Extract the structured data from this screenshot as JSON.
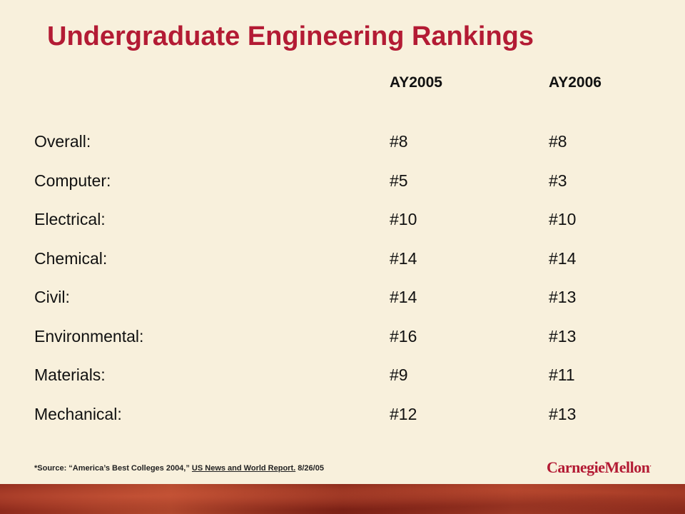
{
  "title": "Undergraduate Engineering Rankings",
  "columns": [
    "AY2005",
    "AY2006"
  ],
  "rows": [
    {
      "label": "Overall:",
      "ay2005": "#8",
      "ay2006": "#8"
    },
    {
      "label": "Computer:",
      "ay2005": "#5",
      "ay2006": "#3"
    },
    {
      "label": "Electrical:",
      "ay2005": "#10",
      "ay2006": "#10"
    },
    {
      "label": "Chemical:",
      "ay2005": "#14",
      "ay2006": "#14"
    },
    {
      "label": "Civil:",
      "ay2005": "#14",
      "ay2006": "#13"
    },
    {
      "label": "Environmental:",
      "ay2005": "#16",
      "ay2006": "#13"
    },
    {
      "label": "Materials:",
      "ay2005": "#9",
      "ay2006": "#11"
    },
    {
      "label": "Mechanical:",
      "ay2005": "#12",
      "ay2006": "#13"
    }
  ],
  "source": {
    "prefix": "*Source:  “America’s Best Colleges  2004,”",
    "publication": "US News and World Report.",
    "date": "8/26/05"
  },
  "logo": {
    "text": "CarnegieMellon",
    "mark": "."
  }
}
